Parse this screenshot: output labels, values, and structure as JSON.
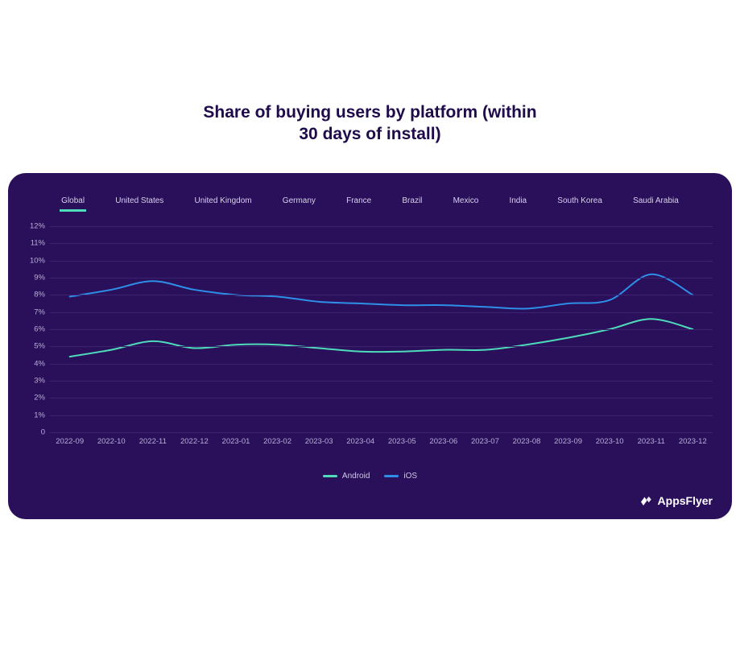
{
  "title_line1": "Share of buying users by platform (within",
  "title_line2": "30 days of install)",
  "title_color": "#1f0a4a",
  "title_fontsize": 21,
  "panel_bg": "#2a0f5b",
  "panel_radius": 22,
  "tabs": {
    "items": [
      "Global",
      "United States",
      "United Kingdom",
      "Germany",
      "France",
      "Brazil",
      "Mexico",
      "India",
      "South Korea",
      "Saudi Arabia"
    ],
    "active_index": 0,
    "font_color": "#d7d2ea",
    "font_size": 10,
    "active_underline": "#4edbb9"
  },
  "chart": {
    "type": "line",
    "ylim": [
      0,
      12
    ],
    "ytick_step": 1,
    "ytick_suffix": "%",
    "ytick_zero_suffix": false,
    "x_categories": [
      "2022-09",
      "2022-10",
      "2022-11",
      "2022-12",
      "2023-01",
      "2023-02",
      "2023-03",
      "2023-04",
      "2023-05",
      "2023-06",
      "2023-07",
      "2023-08",
      "2023-09",
      "2023-10",
      "2023-11",
      "2023-12"
    ],
    "grid_color": "#3b2371",
    "axis_text_color": "#b7afd6",
    "axis_font_size": 9.5,
    "background": "#2a0f5b",
    "line_width": 2,
    "series": [
      {
        "name": "Android",
        "color": "#4edbb9",
        "values": [
          4.4,
          4.8,
          5.3,
          4.9,
          5.1,
          5.1,
          4.9,
          4.7,
          4.7,
          4.8,
          4.8,
          5.1,
          5.5,
          6.0,
          6.6,
          6.0
        ]
      },
      {
        "name": "iOS",
        "color": "#2d8fe8",
        "values": [
          7.9,
          8.3,
          8.8,
          8.3,
          8.0,
          7.9,
          7.6,
          7.5,
          7.4,
          7.4,
          7.3,
          7.2,
          7.5,
          7.7,
          9.2,
          8.0
        ]
      }
    ]
  },
  "legend": {
    "font_color": "#cfc8e8",
    "font_size": 10
  },
  "brand": {
    "text": "AppsFlyer",
    "color": "#ffffff",
    "font_size": 14
  }
}
